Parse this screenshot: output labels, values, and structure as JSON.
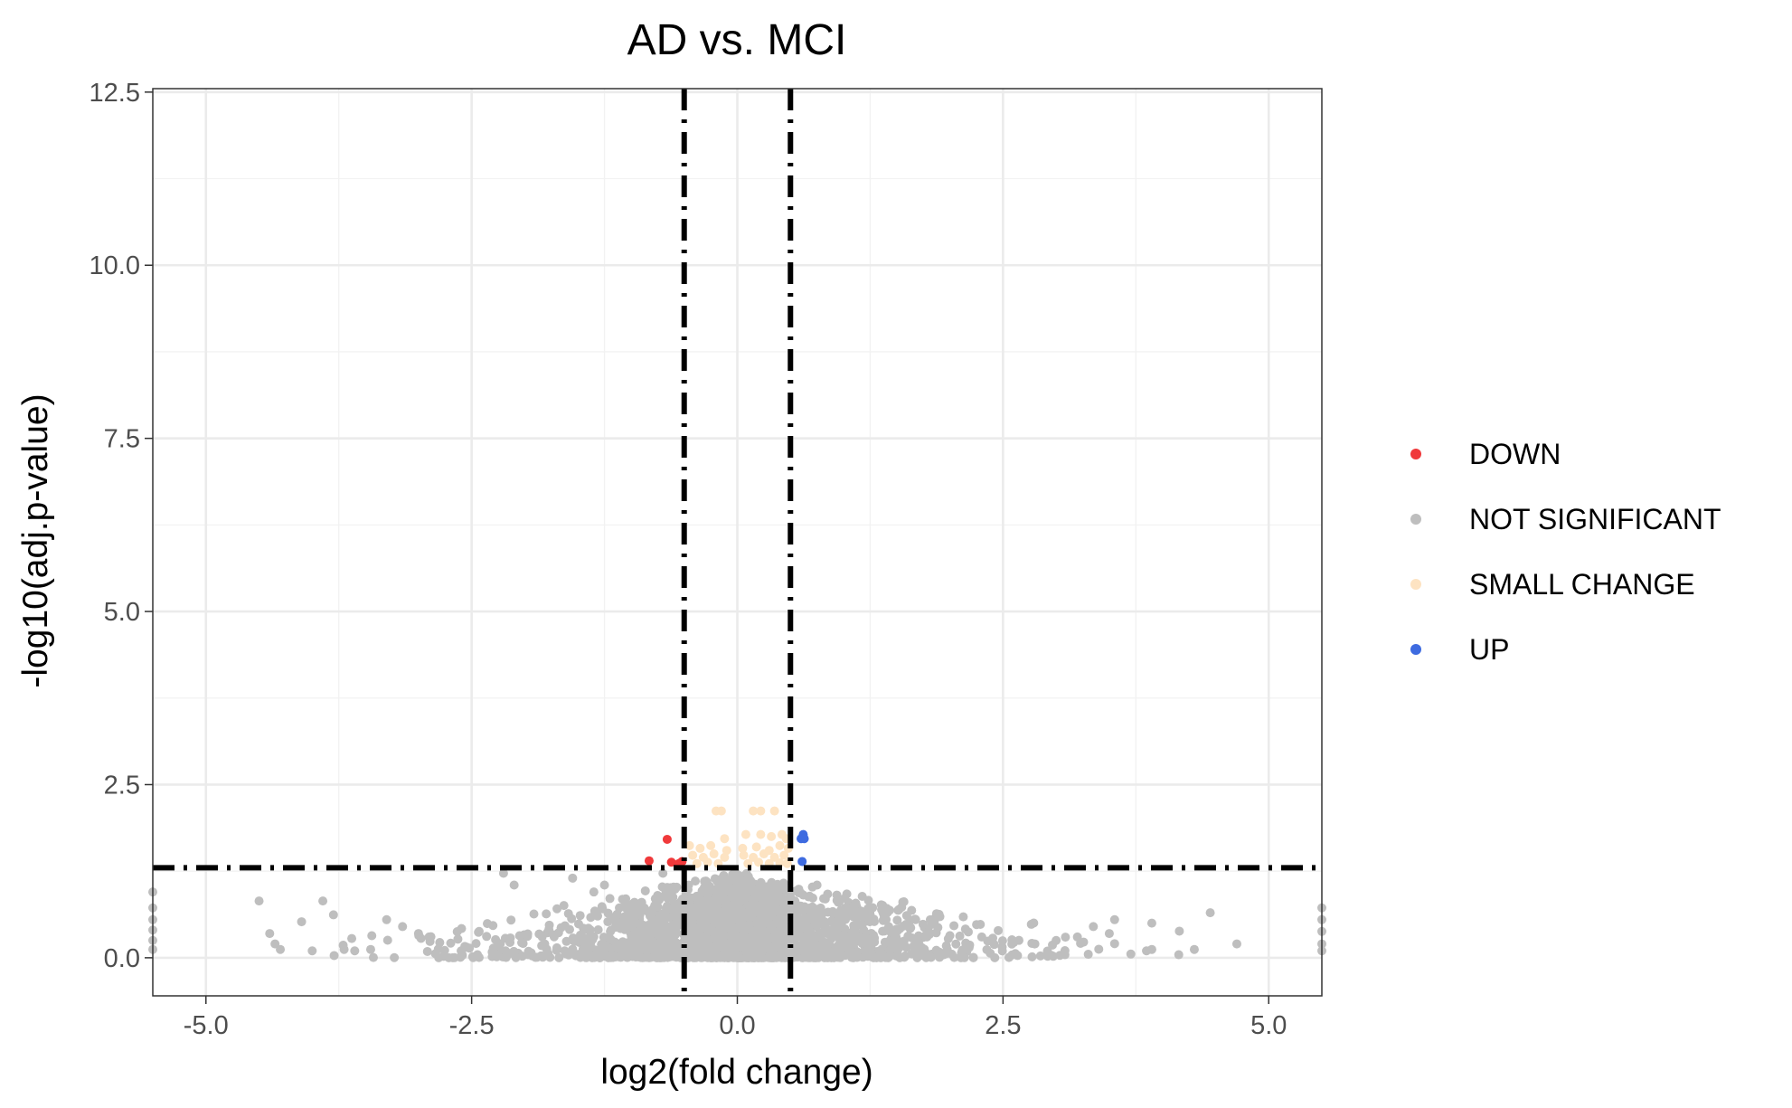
{
  "chart_data": {
    "type": "scatter",
    "title": "AD vs. MCI",
    "xlabel": "log2(fold change)",
    "ylabel": "-log10(adj.p-value)",
    "xlim": [
      -5.5,
      5.5
    ],
    "ylim": [
      -0.55,
      12.55
    ],
    "x_ticks": [
      -5.0,
      -2.5,
      0.0,
      2.5,
      5.0
    ],
    "x_tick_labels": [
      "-5.0",
      "-2.5",
      "0.0",
      "2.5",
      "5.0"
    ],
    "y_ticks": [
      0.0,
      2.5,
      5.0,
      7.5,
      10.0,
      12.5
    ],
    "y_tick_labels": [
      "0.0",
      "2.5",
      "5.0",
      "7.5",
      "10.0",
      "12.5"
    ],
    "grid": true,
    "legend_position": "right",
    "threshold_lines": {
      "x": [
        -0.5,
        0.5
      ],
      "y": [
        1.3
      ]
    },
    "series": [
      {
        "name": "DOWN",
        "color": "#f0393b",
        "points": [
          [
            -0.66,
            1.71
          ],
          [
            -0.83,
            1.4
          ],
          [
            -0.62,
            1.38
          ],
          [
            -0.52,
            1.39
          ],
          [
            -0.55,
            1.36
          ]
        ]
      },
      {
        "name": "NOT SIGNIFICANT",
        "color": "#bebebe",
        "points": [
          [
            -5.5,
            0.95
          ],
          [
            -5.5,
            0.72
          ],
          [
            -5.5,
            0.55
          ],
          [
            -5.5,
            0.4
          ],
          [
            -5.5,
            0.25
          ],
          [
            -5.5,
            0.12
          ],
          [
            5.5,
            0.72
          ],
          [
            5.5,
            0.55
          ],
          [
            5.5,
            0.38
          ],
          [
            5.5,
            0.2
          ],
          [
            5.5,
            0.1
          ],
          [
            -4.5,
            0.82
          ],
          [
            -4.4,
            0.35
          ],
          [
            -4.35,
            0.2
          ],
          [
            -4.3,
            0.12
          ],
          [
            -4.1,
            0.52
          ],
          [
            -4.0,
            0.1
          ],
          [
            -3.9,
            0.82
          ],
          [
            -3.8,
            0.62
          ],
          [
            -3.7,
            0.12
          ],
          [
            -3.6,
            0.1
          ],
          [
            -3.45,
            0.12
          ],
          [
            -3.3,
            0.55
          ],
          [
            -3.15,
            0.45
          ],
          [
            -3.0,
            0.35
          ],
          [
            -2.9,
            0.3
          ],
          [
            -2.8,
            0.22
          ],
          [
            -2.2,
            1.22
          ],
          [
            -2.1,
            1.05
          ],
          [
            -1.55,
            1.15
          ],
          [
            -1.35,
            0.95
          ],
          [
            -1.25,
            1.05
          ],
          [
            -1.05,
            0.85
          ],
          [
            -0.9,
            0.8
          ],
          [
            -0.75,
            0.9
          ],
          [
            -0.7,
            1.22
          ],
          [
            -0.6,
            1.02
          ],
          [
            0.75,
            1.05
          ],
          [
            0.85,
            0.92
          ],
          [
            0.95,
            0.8
          ],
          [
            1.1,
            0.75
          ],
          [
            1.25,
            0.62
          ],
          [
            1.4,
            0.55
          ],
          [
            1.6,
            0.48
          ],
          [
            1.8,
            0.38
          ],
          [
            2.0,
            0.32
          ],
          [
            2.3,
            0.3
          ],
          [
            2.6,
            0.22
          ],
          [
            2.8,
            0.2
          ],
          [
            3.0,
            0.25
          ],
          [
            3.2,
            0.3
          ],
          [
            3.35,
            0.45
          ],
          [
            3.5,
            0.35
          ],
          [
            3.55,
            0.55
          ],
          [
            3.9,
            0.5
          ],
          [
            3.85,
            0.1
          ],
          [
            3.9,
            0.12
          ],
          [
            4.3,
            0.12
          ],
          [
            4.45,
            0.65
          ],
          [
            4.7,
            0.2
          ]
        ]
      },
      {
        "name": "SMALL CHANGE",
        "color": "#fde3c2",
        "points": [
          [
            -0.2,
            2.12
          ],
          [
            -0.15,
            2.12
          ],
          [
            0.15,
            2.12
          ],
          [
            0.22,
            2.12
          ],
          [
            0.35,
            2.12
          ],
          [
            -0.12,
            1.72
          ],
          [
            0.08,
            1.78
          ],
          [
            0.22,
            1.78
          ],
          [
            0.32,
            1.75
          ],
          [
            0.42,
            1.78
          ],
          [
            0.46,
            1.72
          ],
          [
            -0.45,
            1.62
          ],
          [
            -0.35,
            1.58
          ],
          [
            -0.25,
            1.62
          ],
          [
            -0.1,
            1.55
          ],
          [
            0.05,
            1.58
          ],
          [
            0.18,
            1.6
          ],
          [
            0.3,
            1.55
          ],
          [
            0.4,
            1.62
          ],
          [
            0.48,
            1.58
          ],
          [
            -0.42,
            1.48
          ],
          [
            -0.32,
            1.45
          ],
          [
            -0.22,
            1.5
          ],
          [
            -0.12,
            1.45
          ],
          [
            0.06,
            1.48
          ],
          [
            0.15,
            1.45
          ],
          [
            0.25,
            1.5
          ],
          [
            0.35,
            1.45
          ],
          [
            0.44,
            1.48
          ],
          [
            -0.38,
            1.36
          ],
          [
            -0.28,
            1.38
          ],
          [
            -0.18,
            1.36
          ],
          [
            0.1,
            1.36
          ],
          [
            0.2,
            1.38
          ],
          [
            0.3,
            1.36
          ],
          [
            0.4,
            1.37
          ],
          [
            0.47,
            1.36
          ]
        ]
      },
      {
        "name": "UP",
        "color": "#3e6be0",
        "points": [
          [
            0.62,
            1.78
          ],
          [
            0.6,
            1.72
          ],
          [
            0.63,
            1.72
          ],
          [
            0.61,
            1.39
          ]
        ]
      }
    ]
  }
}
